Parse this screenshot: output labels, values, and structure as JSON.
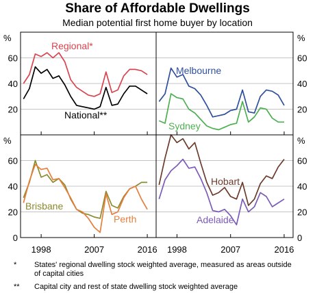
{
  "title": "Share of Affordable Dwellings",
  "subtitle": "Median potential first home buyer by location",
  "colors": {
    "regional": "#d9434e",
    "national": "#000000",
    "melbourne": "#2f4f9e",
    "sydney": "#4caf50",
    "brisbane": "#8a8a2e",
    "perth": "#e67e3c",
    "hobart": "#6b3a2a",
    "adelaide": "#7b5ab8",
    "grid": "#b0b0b0"
  },
  "chart_data": [
    {
      "type": "line",
      "panel": "top-left",
      "y_unit": "%",
      "ylim": [
        0,
        80
      ],
      "yticks": [
        20,
        40,
        60
      ],
      "xlim": [
        1994.5,
        2017.5
      ],
      "xticks": [
        1998,
        2007,
        2016
      ],
      "series": [
        {
          "name": "Regional*",
          "color_key": "regional",
          "x": [
            1995,
            1996,
            1997,
            1998,
            1999,
            2000,
            2001,
            2002,
            2003,
            2004,
            2005,
            2006,
            2007,
            2008,
            2009,
            2010,
            2011,
            2012,
            2013,
            2014,
            2015,
            2016
          ],
          "y": [
            40,
            47,
            63,
            61,
            64,
            60,
            64,
            57,
            43,
            37,
            34,
            31,
            30,
            32,
            49,
            33,
            35,
            46,
            51,
            51,
            50,
            47
          ]
        },
        {
          "name": "National**",
          "color_key": "national",
          "x": [
            1995,
            1996,
            1997,
            1998,
            1999,
            2000,
            2001,
            2002,
            2003,
            2004,
            2005,
            2006,
            2007,
            2008,
            2009,
            2010,
            2011,
            2012,
            2013,
            2014,
            2015,
            2016
          ],
          "y": [
            28,
            36,
            53,
            48,
            51,
            44,
            46,
            39,
            30,
            23,
            22,
            21,
            20,
            22,
            37,
            23,
            24,
            32,
            38,
            38,
            35,
            32
          ]
        }
      ]
    },
    {
      "type": "line",
      "panel": "top-right",
      "y_unit": "%",
      "ylim": [
        0,
        80
      ],
      "yticks": [
        20,
        40,
        60
      ],
      "xlim": [
        1994.5,
        2017.5
      ],
      "xticks": [
        1998,
        2007,
        2016
      ],
      "series": [
        {
          "name": "Melbourne",
          "color_key": "melbourne",
          "x": [
            1995,
            1996,
            1997,
            1998,
            1999,
            2000,
            2001,
            2002,
            2003,
            2004,
            2005,
            2006,
            2007,
            2008,
            2009,
            2010,
            2011,
            2012,
            2013,
            2014,
            2015,
            2016
          ],
          "y": [
            26,
            32,
            52,
            45,
            47,
            38,
            36,
            31,
            23,
            14,
            15,
            16,
            19,
            20,
            35,
            18,
            17,
            30,
            35,
            34,
            31,
            23
          ]
        },
        {
          "name": "Sydney",
          "color_key": "sydney",
          "x": [
            1995,
            1996,
            1997,
            1998,
            1999,
            2000,
            2001,
            2002,
            2003,
            2004,
            2005,
            2006,
            2007,
            2008,
            2009,
            2010,
            2011,
            2012,
            2013,
            2014,
            2015,
            2016
          ],
          "y": [
            11,
            9,
            32,
            29,
            28,
            20,
            17,
            12,
            7,
            5,
            4,
            6,
            8,
            9,
            26,
            10,
            14,
            21,
            20,
            13,
            10,
            10
          ]
        }
      ]
    },
    {
      "type": "line",
      "panel": "bottom-left",
      "y_unit": "%",
      "ylim": [
        0,
        80
      ],
      "yticks": [
        0,
        20,
        40,
        60
      ],
      "xlim": [
        1994.5,
        2017.5
      ],
      "xticks": [
        1998,
        2007,
        2016
      ],
      "series": [
        {
          "name": "Brisbane",
          "color_key": "brisbane",
          "x": [
            1995,
            1996,
            1997,
            1998,
            1999,
            2000,
            2001,
            2002,
            2003,
            2004,
            2005,
            2006,
            2007,
            2008,
            2009,
            2010,
            2011,
            2012,
            2013,
            2014,
            2015,
            2016
          ],
          "y": [
            31,
            43,
            60,
            47,
            49,
            43,
            46,
            41,
            30,
            22,
            19,
            18,
            16,
            15,
            36,
            25,
            23,
            32,
            38,
            40,
            43,
            43
          ]
        },
        {
          "name": "Perth",
          "color_key": "perth",
          "x": [
            1995,
            1996,
            1997,
            1998,
            1999,
            2000,
            2001,
            2002,
            2003,
            2004,
            2005,
            2006,
            2007,
            2008,
            2009,
            2010,
            2011,
            2012,
            2013,
            2014,
            2015,
            2016
          ],
          "y": [
            27,
            44,
            57,
            53,
            54,
            45,
            46,
            39,
            31,
            22,
            20,
            15,
            8,
            4,
            34,
            18,
            20,
            31,
            38,
            40,
            30,
            22
          ]
        }
      ]
    },
    {
      "type": "line",
      "panel": "bottom-right",
      "y_unit": "%",
      "ylim": [
        0,
        80
      ],
      "yticks": [
        0,
        20,
        40,
        60
      ],
      "xlim": [
        1994.5,
        2017.5
      ],
      "xticks": [
        1998,
        2007,
        2016
      ],
      "series": [
        {
          "name": "Hobart",
          "color_key": "hobart",
          "x": [
            1995,
            1996,
            1997,
            1998,
            1999,
            2000,
            2001,
            2002,
            2003,
            2004,
            2005,
            2006,
            2007,
            2008,
            2009,
            2010,
            2011,
            2012,
            2013,
            2014,
            2015,
            2016
          ],
          "y": [
            41,
            62,
            80,
            74,
            77,
            69,
            74,
            58,
            43,
            33,
            35,
            39,
            32,
            30,
            43,
            25,
            30,
            42,
            48,
            46,
            55,
            61
          ]
        },
        {
          "name": "Adelaide",
          "color_key": "adelaide",
          "x": [
            1995,
            1996,
            1997,
            1998,
            1999,
            2000,
            2001,
            2002,
            2003,
            2004,
            2005,
            2006,
            2007,
            2008,
            2009,
            2010,
            2011,
            2012,
            2013,
            2014,
            2015,
            2016
          ],
          "y": [
            30,
            45,
            52,
            56,
            61,
            54,
            55,
            46,
            35,
            21,
            20,
            22,
            17,
            10,
            30,
            20,
            24,
            35,
            32,
            24,
            27,
            30
          ]
        }
      ]
    }
  ],
  "footnotes": [
    {
      "mark": "*",
      "text": "States' regional dwelling stock weighted average, measured as areas outside of capital cities"
    },
    {
      "mark": "**",
      "text": "Capital city and rest of state dwelling stock weighted average"
    }
  ]
}
